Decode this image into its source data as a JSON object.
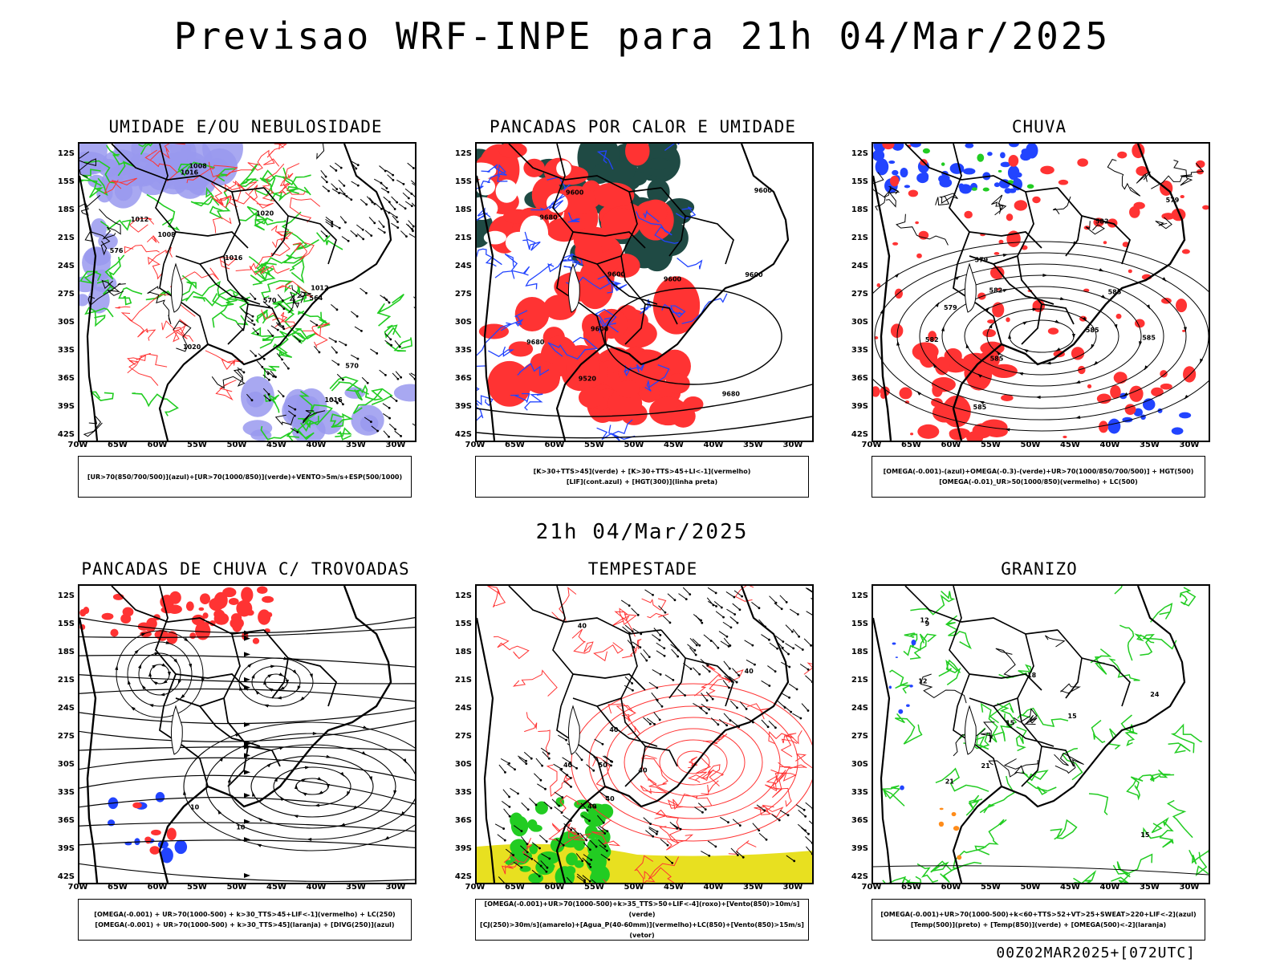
{
  "header": {
    "title": "Previsao WRF-INPE  para 21h 04/Mar/2025",
    "subtitle": "21h 04/Mar/2025",
    "footer": "00Z02MAR2025+[072UTC]"
  },
  "axes": {
    "lat_labels": [
      "12S",
      "15S",
      "18S",
      "21S",
      "24S",
      "27S",
      "30S",
      "33S",
      "36S",
      "39S",
      "42S"
    ],
    "lon_labels": [
      "70W",
      "65W",
      "60W",
      "55W",
      "50W",
      "45W",
      "40W",
      "35W",
      "30W"
    ]
  },
  "colors": {
    "blue": "#2244ff",
    "green": "#22cc22",
    "red": "#ff3333",
    "dark_green": "#1f4a44",
    "purple": "#9999ee",
    "yellow": "#e8e020",
    "orange": "#ff8c1a"
  },
  "panels": [
    {
      "title": "UMIDADE E/OU NEBULOSIDADE",
      "legend": [
        "[UR>70(850/700/500)](azul)+[UR>70(1000/850)](verde)+VENTO>5m/s+ESP(500/1000)"
      ],
      "contour_labels": [
        "1008",
        "1012",
        "1016",
        "1016",
        "1020",
        "1020",
        "576",
        "570",
        "570",
        "564",
        "1008",
        "1012",
        "1016"
      ]
    },
    {
      "title": "PANCADAS POR CALOR E UMIDADE",
      "legend": [
        "[K>30+TTS>45](verde) + [K>30+TTS>45+LI<-1](vermelho)",
        "[LIF](cont.azul) + [HGT(300)](linha preta)"
      ],
      "contour_labels": [
        "9600",
        "9600",
        "9600",
        "9680",
        "9680",
        "9680",
        "9600",
        "9520",
        "9600",
        "9600"
      ]
    },
    {
      "title": "CHUVA",
      "legend": [
        "[OMEGA(-0.001)-(azul)+OMEGA(-0.3)-(verde)+UR>70(1000/850/700/500)] + HGT(500)",
        "[OMEGA(-0.01)_UR>50(1000/850)(vermelho) + LC(500)"
      ],
      "contour_labels": [
        "585",
        "585",
        "582",
        "585",
        "585",
        "582",
        "579",
        "579",
        "585",
        "582",
        "579"
      ]
    },
    {
      "title": "PANCADAS DE CHUVA C/ TROVOADAS",
      "legend": [
        "[OMEGA(-0.001) + UR>70(1000-500) + k>30_TTS>45+LIF<-1](vermelho) + LC(250)",
        "[OMEGA(-0.001) + UR>70(1000-500) + k>30_TTS>45](laranja) + [DIVG(250)](azul)"
      ],
      "contour_labels": [
        "10",
        "10"
      ]
    },
    {
      "title": "TEMPESTADE",
      "legend": [
        "[OMEGA(-0.001)+UR>70(1000-500)+k>35_TTS>50+LIF<-4](roxo)+[Vento(850)>10m/s](verde)",
        "[CJ(250)>30m/s](amarelo)+[Agua_P(40-60mm)](vermelho)+LC(850)+[Vento(850)>15m/s](vetor)"
      ],
      "contour_labels": [
        "50",
        "40",
        "40",
        "40",
        "40",
        "40",
        "40",
        "40"
      ]
    },
    {
      "title": "GRANIZO",
      "legend": [
        "[OMEGA(-0.001)+UR>70(1000-500)+k<60+TTS>52+VT>25+SWEAT>220+LIF<-2](azul)",
        "[Temp(500)](preto) + [Temp(850)](verde) + [OMEGA(500)<-2](laranja)"
      ],
      "contour_labels": [
        "15",
        "12",
        "21",
        "24",
        "21",
        "18",
        "15",
        "12",
        "9",
        "15"
      ]
    }
  ]
}
